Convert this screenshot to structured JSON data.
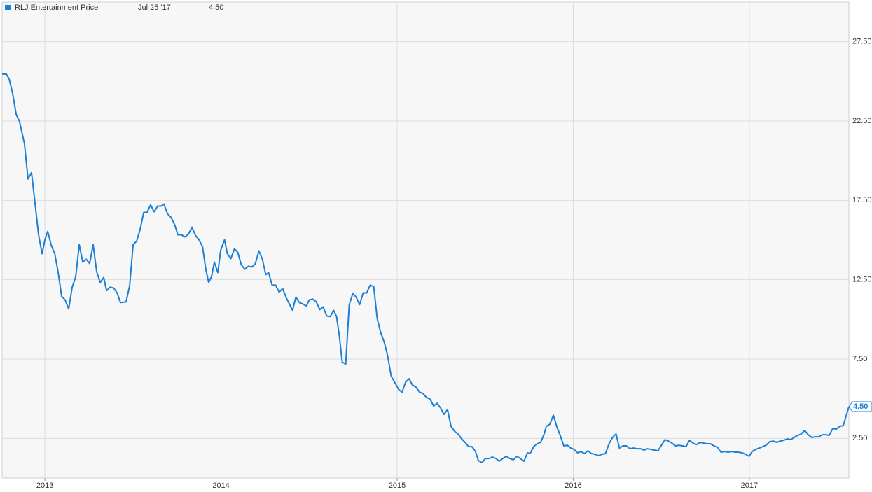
{
  "chart_data": {
    "type": "line",
    "header": {
      "date": "Jul 25 '17",
      "value": "4.50"
    },
    "xlim": [
      2012.757,
      2017.565
    ],
    "xticks": [
      2013,
      2014,
      2015,
      2016,
      2017
    ],
    "ylim": [
      0,
      30
    ],
    "yticks": [
      {
        "value": 2.5,
        "label": "2.50"
      },
      {
        "value": 7.5,
        "label": "7.50"
      },
      {
        "value": 12.5,
        "label": "12.50"
      },
      {
        "value": 17.5,
        "label": "17.50"
      },
      {
        "value": 22.5,
        "label": "22.50"
      },
      {
        "value": 27.5,
        "label": "27.50"
      }
    ],
    "grid": true,
    "x": [
      2012.757,
      2012.781,
      2012.797,
      2012.817,
      2012.837,
      2012.856,
      2012.884,
      2012.904,
      2012.924,
      2012.944,
      2012.964,
      2012.984,
      2013.0,
      2013.016,
      2013.036,
      2013.056,
      2013.076,
      2013.095,
      2013.115,
      2013.135,
      2013.155,
      2013.175,
      2013.195,
      2013.215,
      2013.235,
      2013.254,
      2013.274,
      2013.294,
      2013.314,
      2013.334,
      2013.35,
      2013.37,
      2013.39,
      2013.41,
      2013.429,
      2013.461,
      2013.481,
      2013.501,
      2013.521,
      2013.541,
      2013.561,
      2013.58,
      2013.6,
      2013.62,
      2013.64,
      2013.66,
      2013.676,
      2013.696,
      2013.716,
      2013.736,
      2013.755,
      2013.775,
      2013.795,
      2013.815,
      2013.835,
      2013.855,
      2013.875,
      2013.895,
      2013.914,
      2013.93,
      2013.946,
      2013.962,
      2013.982,
      2013.998,
      2014.02,
      2014.036,
      2014.056,
      2014.076,
      2014.095,
      2014.115,
      2014.135,
      2014.155,
      2014.175,
      2014.195,
      2014.215,
      2014.235,
      2014.254,
      2014.27,
      2014.29,
      2014.31,
      2014.33,
      2014.35,
      2014.37,
      2014.39,
      2014.406,
      2014.425,
      2014.445,
      2014.465,
      2014.485,
      2014.501,
      2014.521,
      2014.541,
      2014.561,
      2014.58,
      2014.6,
      2014.62,
      2014.64,
      2014.656,
      2014.672,
      2014.688,
      2014.708,
      2014.728,
      2014.748,
      2014.767,
      2014.787,
      2014.807,
      2014.827,
      2014.847,
      2014.867,
      2014.887,
      2014.907,
      2014.926,
      2014.946,
      2014.966,
      2014.986,
      2015.008,
      2015.028,
      2015.048,
      2015.068,
      2015.087,
      2015.107,
      2015.127,
      2015.147,
      2015.167,
      2015.187,
      2015.207,
      2015.227,
      2015.247,
      2015.266,
      2015.286,
      2015.306,
      2015.326,
      2015.346,
      2015.366,
      2015.386,
      2015.406,
      2015.425,
      2015.445,
      2015.461,
      2015.481,
      2015.501,
      2015.521,
      2015.541,
      2015.561,
      2015.58,
      2015.6,
      2015.62,
      2015.64,
      2015.66,
      2015.68,
      2015.7,
      2015.72,
      2015.74,
      2015.755,
      2015.775,
      2015.795,
      2015.815,
      2015.835,
      2015.847,
      2015.867,
      2015.887,
      2015.907,
      2015.926,
      2015.946,
      2015.966,
      2015.986,
      2016.004,
      2016.024,
      2016.044,
      2016.064,
      2016.083,
      2016.103,
      2016.123,
      2016.143,
      2016.163,
      2016.183,
      2016.203,
      2016.223,
      2016.243,
      2016.262,
      2016.282,
      2016.302,
      2016.322,
      2016.342,
      2016.362,
      2016.382,
      2016.402,
      2016.421,
      2016.441,
      2016.461,
      2016.481,
      2016.501,
      2016.521,
      2016.541,
      2016.561,
      2016.58,
      2016.6,
      2016.62,
      2016.64,
      2016.66,
      2016.68,
      2016.7,
      2016.72,
      2016.74,
      2016.759,
      2016.779,
      2016.799,
      2016.819,
      2016.839,
      2016.859,
      2016.879,
      2016.899,
      2016.918,
      2016.938,
      2016.958,
      2016.978,
      2016.998,
      2017.016,
      2017.036,
      2017.056,
      2017.076,
      2017.095,
      2017.115,
      2017.135,
      2017.155,
      2017.175,
      2017.195,
      2017.215,
      2017.235,
      2017.254,
      2017.274,
      2017.294,
      2017.314,
      2017.334,
      2017.354,
      2017.374,
      2017.394,
      2017.414,
      2017.433,
      2017.453,
      2017.473,
      2017.493,
      2017.513,
      2017.533,
      2017.565
    ],
    "series": [
      {
        "name": "RLJ Entertainment Price",
        "color": "#1b7fd6",
        "values": [
          25.46,
          25.46,
          25.15,
          24.23,
          22.91,
          22.47,
          21.06,
          18.85,
          19.25,
          17.31,
          15.33,
          14.14,
          15.02,
          15.55,
          14.67,
          14.14,
          12.91,
          11.45,
          11.23,
          10.66,
          12.03,
          12.69,
          14.71,
          13.61,
          13.79,
          13.52,
          14.71,
          13.0,
          12.33,
          12.64,
          11.81,
          12.03,
          11.98,
          11.67,
          11.06,
          11.1,
          12.11,
          14.71,
          14.93,
          15.68,
          16.74,
          16.74,
          17.22,
          16.78,
          17.14,
          17.14,
          17.27,
          16.65,
          16.43,
          15.99,
          15.33,
          15.33,
          15.2,
          15.37,
          15.81,
          15.29,
          15.02,
          14.58,
          13.13,
          12.33,
          12.69,
          13.61,
          12.95,
          14.36,
          15.02,
          14.14,
          13.83,
          14.45,
          14.23,
          13.44,
          13.17,
          13.35,
          13.3,
          13.52,
          14.32,
          13.79,
          12.82,
          12.95,
          12.16,
          12.16,
          11.72,
          11.94,
          11.37,
          10.93,
          10.57,
          11.41,
          11.06,
          10.97,
          10.84,
          11.23,
          11.28,
          11.1,
          10.62,
          10.79,
          10.22,
          10.18,
          10.57,
          10.18,
          8.94,
          7.31,
          7.18,
          10.93,
          11.63,
          11.41,
          10.93,
          11.67,
          11.67,
          12.16,
          12.07,
          10.04,
          9.16,
          8.59,
          7.71,
          6.43,
          6.04,
          5.59,
          5.42,
          6.04,
          6.26,
          5.86,
          5.73,
          5.42,
          5.33,
          5.07,
          4.98,
          4.54,
          4.71,
          4.41,
          4.01,
          4.32,
          3.26,
          2.95,
          2.78,
          2.47,
          2.25,
          1.98,
          1.98,
          1.67,
          1.1,
          0.97,
          1.23,
          1.23,
          1.32,
          1.23,
          1.06,
          1.23,
          1.37,
          1.23,
          1.15,
          1.37,
          1.23,
          1.06,
          1.59,
          1.54,
          1.98,
          2.16,
          2.25,
          2.78,
          3.26,
          3.39,
          3.96,
          3.22,
          2.69,
          2.03,
          2.07,
          1.89,
          1.81,
          1.59,
          1.67,
          1.54,
          1.72,
          1.54,
          1.5,
          1.41,
          1.5,
          1.54,
          2.16,
          2.56,
          2.78,
          1.89,
          2.03,
          2.03,
          1.85,
          1.89,
          1.85,
          1.85,
          1.76,
          1.85,
          1.81,
          1.76,
          1.72,
          2.07,
          2.42,
          2.33,
          2.2,
          2.03,
          2.07,
          2.03,
          1.98,
          2.38,
          2.2,
          2.11,
          2.25,
          2.2,
          2.16,
          2.16,
          2.03,
          1.94,
          1.63,
          1.67,
          1.63,
          1.67,
          1.63,
          1.63,
          1.59,
          1.5,
          1.37,
          1.67,
          1.81,
          1.89,
          1.98,
          2.07,
          2.29,
          2.33,
          2.25,
          2.33,
          2.38,
          2.47,
          2.42,
          2.56,
          2.69,
          2.78,
          3.0,
          2.73,
          2.56,
          2.6,
          2.6,
          2.73,
          2.73,
          2.69,
          3.12,
          3.08,
          3.26,
          3.3,
          4.5
        ]
      }
    ]
  }
}
